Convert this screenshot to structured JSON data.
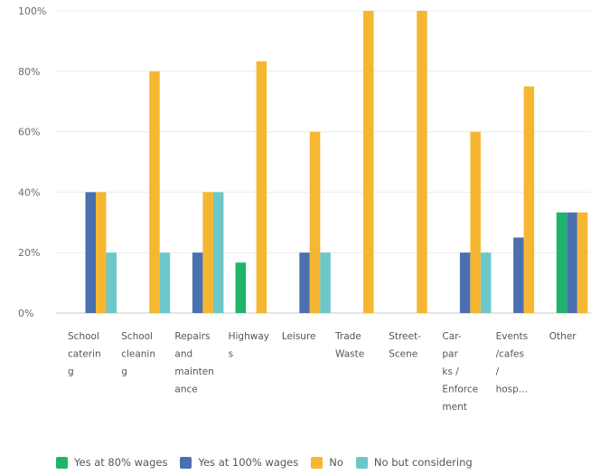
{
  "chart_data": {
    "type": "bar",
    "categories": [
      [
        "School",
        "caterin",
        "g"
      ],
      [
        "School",
        "cleanin",
        "g"
      ],
      [
        "Repairs",
        "and",
        "mainten",
        "ance"
      ],
      [
        "Highway",
        "s"
      ],
      [
        "Leisure"
      ],
      [
        "Trade",
        "Waste"
      ],
      [
        "Street-",
        "Scene"
      ],
      [
        "Car-",
        "par",
        "ks /",
        "Enforce",
        "ment"
      ],
      [
        "Events",
        "/cafes",
        "/",
        "hosp..."
      ],
      [
        "Other"
      ]
    ],
    "series": [
      {
        "name": "Yes at 80% wages",
        "color": "#1fb46a",
        "values": [
          0,
          0,
          0,
          16.7,
          0,
          0,
          0,
          0,
          0,
          33.3
        ]
      },
      {
        "name": "Yes at 100% wages",
        "color": "#4a70b0",
        "values": [
          40,
          0,
          20,
          0,
          20,
          0,
          0,
          20,
          25,
          33.3
        ]
      },
      {
        "name": "No",
        "color": "#f5b731",
        "values": [
          40,
          80,
          40,
          83.3,
          60,
          100,
          100,
          60,
          75,
          33.3
        ]
      },
      {
        "name": "No but considering",
        "color": "#6cc8c8",
        "values": [
          20,
          20,
          40,
          0,
          20,
          0,
          0,
          20,
          0,
          0
        ]
      }
    ],
    "y_ticks": [
      "0%",
      "20%",
      "40%",
      "60%",
      "80%",
      "100%"
    ],
    "ylim": [
      0,
      100
    ],
    "grid": true,
    "legend_position": "bottom"
  }
}
